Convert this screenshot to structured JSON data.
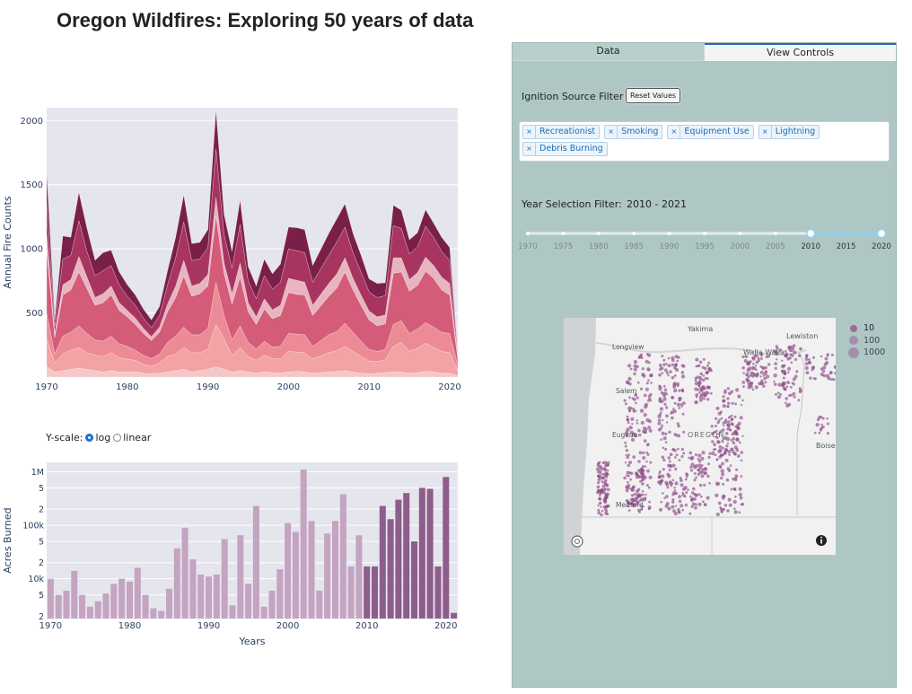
{
  "title": "Oregon Wildfires: Exploring 50 years of data",
  "area_chart": {
    "ylabel": "Annual Fire Counts",
    "yticks": [
      "500",
      "1000",
      "1500",
      "2000"
    ],
    "xticks": [
      "1970",
      "1980",
      "1990",
      "2000",
      "2010",
      "2020"
    ]
  },
  "bar_chart": {
    "ylabel": "Acres Burned",
    "xlabel": "Years",
    "yticks": [
      "2",
      "5",
      "10k",
      "2",
      "5",
      "100k",
      "2",
      "5",
      "1M"
    ],
    "xticks": [
      "1970",
      "1980",
      "1990",
      "2000",
      "2010",
      "2020"
    ],
    "scale_label": "Y-scale:",
    "scale_options": [
      "log",
      "linear"
    ],
    "selected_scale": "log"
  },
  "tabs": [
    "Data",
    "View Controls"
  ],
  "active_tab": "View Controls",
  "ignition_filter": {
    "label": "Ignition Source Filter",
    "reset_label": "Reset Values",
    "chips": [
      "Recreationist",
      "Smoking",
      "Equipment Use",
      "Lightning",
      "Debris Burning"
    ]
  },
  "year_filter": {
    "label": "Year Selection Filter:",
    "range_text": "2010 - 2021",
    "ticks": [
      "1970",
      "1975",
      "1980",
      "1985",
      "1990",
      "1995",
      "2000",
      "2005",
      "2010",
      "2015",
      "2020"
    ],
    "selected_start": 2010,
    "selected_end": 2021
  },
  "map": {
    "cities": [
      "Yakima",
      "Lewiston",
      "Walla Walla",
      "Longview",
      "Salem",
      "Eugene",
      "OREGON",
      "Boise",
      "Medford"
    ],
    "legend": [
      "10",
      "100",
      "1000"
    ]
  },
  "colors": {
    "area_layers": [
      "#f4c8c8",
      "#f3a3a4",
      "#ec8b95",
      "#d45c78",
      "#e8b4c0",
      "#a83560",
      "#7a1f48"
    ],
    "bar_light": "#c4a4c1",
    "bar_dark": "#8e5d8b",
    "panel_bg": "#aec7c4",
    "map_dots": "#8e4b89",
    "chip_text": "#1f6bb5"
  },
  "chart_data": [
    {
      "type": "area",
      "title": "",
      "ylabel": "Annual Fire Counts",
      "xlabel": "",
      "ylim": [
        0,
        2100
      ],
      "xlim": [
        1970,
        2021
      ],
      "stacked": true,
      "x": [
        1970,
        1971,
        1972,
        1973,
        1974,
        1975,
        1976,
        1977,
        1978,
        1979,
        1980,
        1981,
        1982,
        1983,
        1984,
        1985,
        1986,
        1987,
        1988,
        1989,
        1990,
        1991,
        1992,
        1993,
        1994,
        1995,
        1996,
        1997,
        1998,
        1999,
        2000,
        2001,
        2002,
        2003,
        2004,
        2005,
        2006,
        2007,
        2008,
        2009,
        2010,
        2011,
        2012,
        2013,
        2014,
        2015,
        2016,
        2017,
        2018,
        2019,
        2020,
        2021
      ],
      "series": [
        {
          "values": [
            80,
            40,
            50,
            60,
            70,
            60,
            50,
            40,
            50,
            40,
            40,
            40,
            30,
            25,
            30,
            40,
            50,
            60,
            40,
            50,
            60,
            80,
            60,
            40,
            50,
            40,
            30,
            40,
            35,
            30,
            40,
            45,
            40,
            30,
            35,
            40,
            45,
            50,
            40,
            30,
            25,
            30,
            35,
            40,
            40,
            30,
            35,
            45,
            40,
            30,
            30,
            10
          ]
        },
        {
          "values": [
            220,
            70,
            130,
            150,
            160,
            130,
            120,
            120,
            140,
            110,
            100,
            90,
            70,
            60,
            80,
            120,
            130,
            170,
            150,
            140,
            160,
            330,
            240,
            130,
            180,
            120,
            100,
            130,
            110,
            110,
            160,
            150,
            150,
            110,
            130,
            150,
            160,
            190,
            160,
            130,
            100,
            90,
            100,
            200,
            230,
            170,
            190,
            220,
            190,
            170,
            160,
            40
          ]
        },
        {
          "values": [
            200,
            70,
            140,
            140,
            170,
            150,
            120,
            120,
            130,
            110,
            100,
            80,
            70,
            60,
            70,
            110,
            140,
            160,
            140,
            140,
            160,
            330,
            180,
            120,
            170,
            110,
            90,
            110,
            90,
            100,
            140,
            140,
            140,
            100,
            120,
            140,
            150,
            180,
            150,
            120,
            90,
            80,
            80,
            170,
            170,
            140,
            150,
            160,
            160,
            150,
            150,
            40
          ]
        },
        {
          "values": [
            500,
            130,
            320,
            330,
            420,
            350,
            270,
            300,
            320,
            260,
            230,
            200,
            170,
            140,
            170,
            240,
            300,
            400,
            300,
            320,
            330,
            520,
            330,
            280,
            380,
            240,
            190,
            250,
            220,
            240,
            320,
            310,
            310,
            240,
            270,
            300,
            340,
            400,
            330,
            280,
            230,
            200,
            200,
            400,
            380,
            330,
            340,
            400,
            380,
            330,
            300,
            50
          ]
        },
        {
          "values": [
            120,
            30,
            80,
            80,
            120,
            90,
            60,
            70,
            70,
            60,
            50,
            50,
            40,
            30,
            40,
            60,
            90,
            120,
            80,
            80,
            90,
            140,
            80,
            80,
            110,
            70,
            60,
            80,
            70,
            80,
            110,
            110,
            100,
            80,
            90,
            100,
            110,
            110,
            90,
            80,
            70,
            70,
            70,
            120,
            110,
            90,
            100,
            110,
            100,
            100,
            90,
            20
          ]
        },
        {
          "values": [
            250,
            60,
            200,
            190,
            280,
            200,
            170,
            180,
            160,
            140,
            110,
            100,
            80,
            70,
            90,
            150,
            220,
            300,
            200,
            190,
            210,
            380,
            220,
            200,
            300,
            170,
            140,
            180,
            160,
            180,
            230,
            230,
            230,
            180,
            200,
            220,
            250,
            240,
            200,
            180,
            150,
            150,
            150,
            250,
            230,
            200,
            200,
            240,
            220,
            200,
            180,
            20
          ]
        },
        {
          "values": [
            230,
            50,
            180,
            140,
            220,
            180,
            120,
            140,
            120,
            100,
            90,
            80,
            70,
            60,
            70,
            110,
            160,
            210,
            130,
            130,
            140,
            300,
            160,
            130,
            190,
            110,
            100,
            130,
            120,
            140,
            170,
            180,
            180,
            130,
            150,
            170,
            180,
            180,
            150,
            130,
            100,
            110,
            100,
            160,
            140,
            110,
            110,
            130,
            110,
            110,
            100,
            10
          ]
        }
      ]
    },
    {
      "type": "bar",
      "title": "",
      "ylabel": "Acres Burned",
      "xlabel": "Years",
      "yscale": "log",
      "ylim": [
        1800,
        1500000
      ],
      "x": [
        1970,
        1971,
        1972,
        1973,
        1974,
        1975,
        1976,
        1977,
        1978,
        1979,
        1980,
        1981,
        1982,
        1983,
        1984,
        1985,
        1986,
        1987,
        1988,
        1989,
        1990,
        1991,
        1992,
        1993,
        1994,
        1995,
        1996,
        1997,
        1998,
        1999,
        2000,
        2001,
        2002,
        2003,
        2004,
        2005,
        2006,
        2007,
        2008,
        2009,
        2010,
        2011,
        2012,
        2013,
        2014,
        2015,
        2016,
        2017,
        2018,
        2019,
        2020,
        2021
      ],
      "values": [
        10000,
        5000,
        6000,
        14000,
        5000,
        3000,
        3800,
        5300,
        8000,
        10000,
        8800,
        16000,
        5000,
        2800,
        2500,
        6500,
        37000,
        90000,
        23000,
        12000,
        11000,
        12000,
        55000,
        3200,
        65000,
        8000,
        230000,
        3000,
        6000,
        15000,
        110000,
        75000,
        1100000,
        120000,
        6000,
        70000,
        120000,
        380000,
        17000,
        65000,
        17000,
        17000,
        230000,
        130000,
        300000,
        400000,
        50000,
        500000,
        480000,
        17000,
        800000,
        2300
      ]
    }
  ]
}
